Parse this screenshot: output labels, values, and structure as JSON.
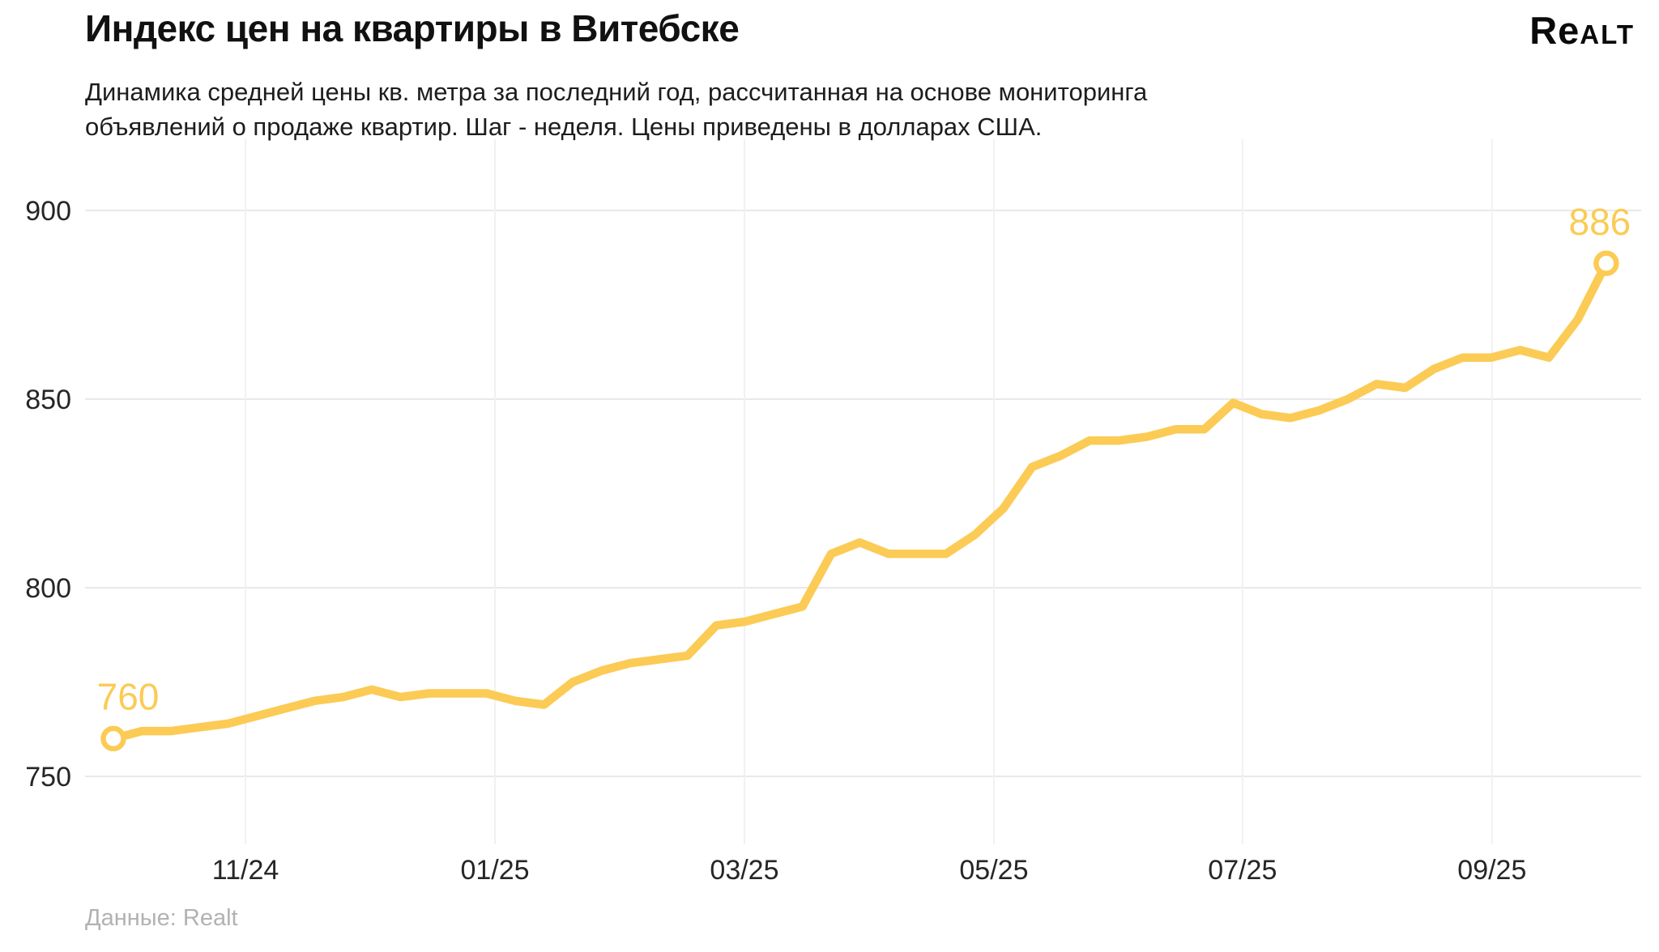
{
  "header": {
    "title": "Индекс цен на квартиры в Витебске",
    "subtitle_line1": "Динамика средней цены кв. метра за последний год, рассчитанная на основе мониторинга",
    "subtitle_line2": "объявлений о продаже квартир. Шаг - неделя. Цены приведены в долларах США.",
    "logo_main": "Re",
    "logo_caps": "alt"
  },
  "footer": {
    "source": "Данные: Realt"
  },
  "chart_data": {
    "type": "line",
    "title": "Индекс цен на квартиры в Витебске",
    "series_name": "Средняя цена кв. метра, USD",
    "step": "неделя",
    "values": [
      760,
      762,
      762,
      763,
      764,
      766,
      768,
      770,
      771,
      773,
      771,
      772,
      772,
      772,
      770,
      769,
      775,
      778,
      780,
      781,
      782,
      790,
      791,
      793,
      795,
      809,
      812,
      809,
      809,
      809,
      814,
      821,
      832,
      835,
      839,
      839,
      840,
      842,
      842,
      849,
      846,
      845,
      847,
      850,
      854,
      853,
      858,
      861,
      861,
      863,
      861,
      871,
      886
    ],
    "first_value": 760,
    "last_value": 886,
    "start_label": "760",
    "end_label": "886",
    "x_ticks": [
      {
        "label": "11/24",
        "week": 4.6
      },
      {
        "label": "01/25",
        "week": 13.29
      },
      {
        "label": "03/25",
        "week": 21.98
      },
      {
        "label": "05/25",
        "week": 30.67
      },
      {
        "label": "07/25",
        "week": 39.33
      },
      {
        "label": "09/25",
        "week": 48.02
      }
    ],
    "y_ticks": [
      750,
      800,
      850,
      900
    ],
    "ylim": [
      730,
      920
    ],
    "grid": true,
    "legend": "none",
    "colors": {
      "line": "#FBCB55",
      "value_label": "#FBCB55",
      "marker_fill": "#ffffff",
      "grid_h": "#e9e9e9",
      "grid_v": "#f1f1f1",
      "axis_text": "#262626"
    }
  }
}
